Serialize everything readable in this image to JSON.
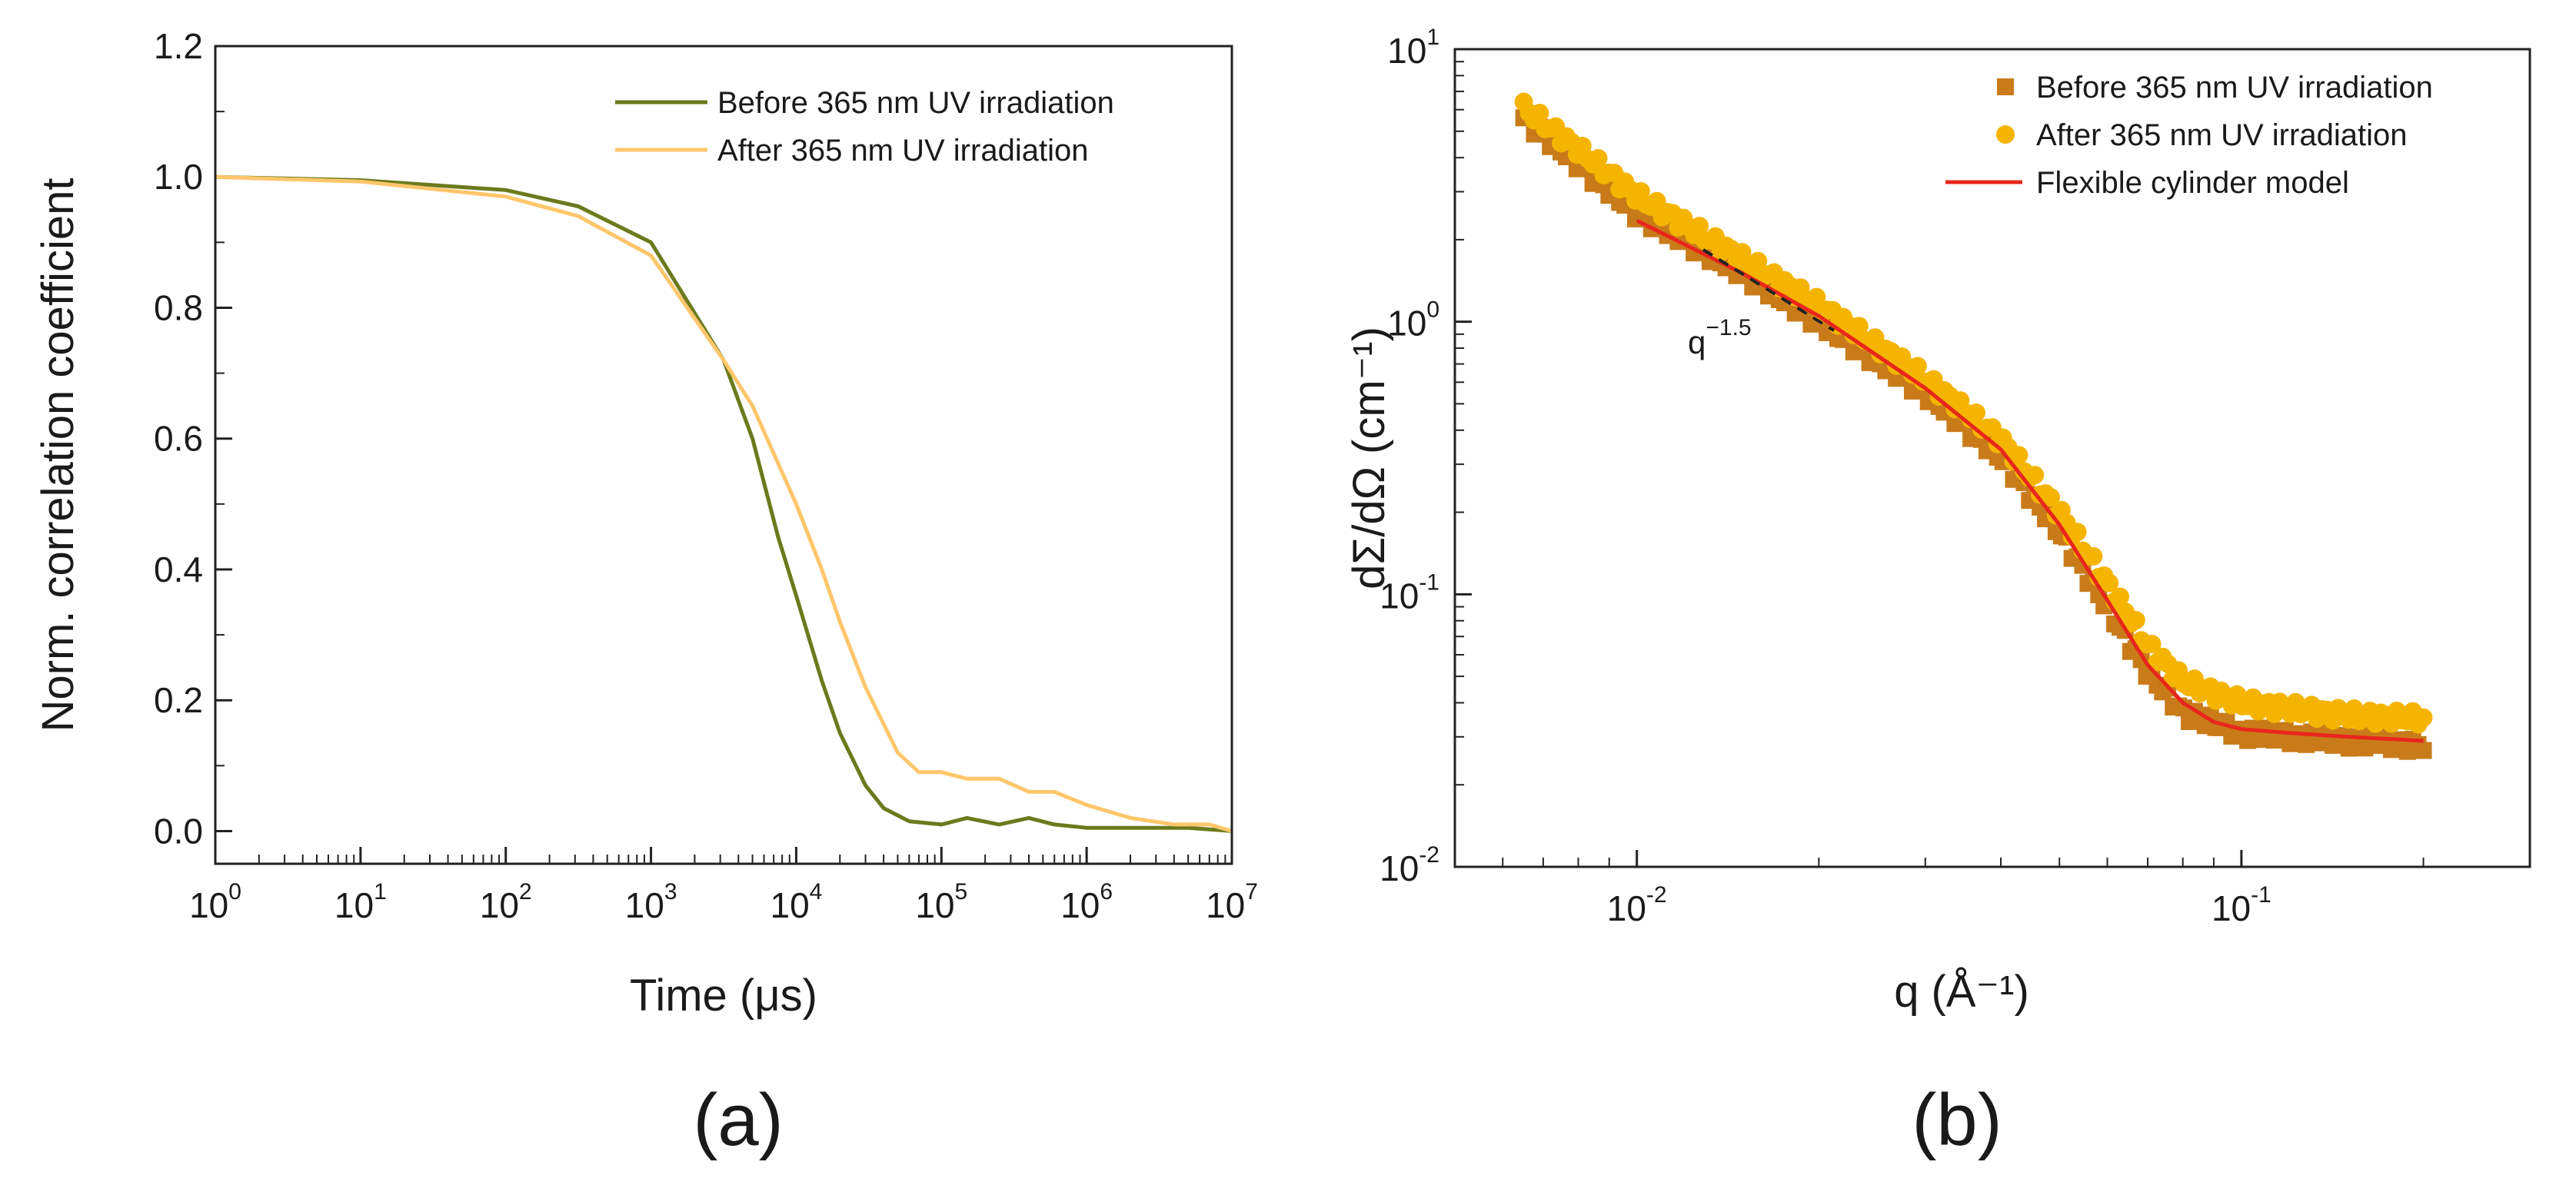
{
  "colors": {
    "before_a": "#6b7a1c",
    "after_a": "#ffc66b",
    "before_b": "#c97b1a",
    "after_b": "#f5b400",
    "model": "#e8261c",
    "axis": "#222222"
  },
  "chart_data": [
    {
      "type": "line",
      "panel_label": "(a)",
      "xlabel": "Time (μs)",
      "ylabel": "Norm. correlation coefficient",
      "xscale": "log",
      "xlim": [
        1,
        10000000
      ],
      "ylim": [
        -0.05,
        1.2
      ],
      "x_tick_labels": [
        {
          "base": "10",
          "exp": "0"
        },
        {
          "base": "10",
          "exp": "1"
        },
        {
          "base": "10",
          "exp": "2"
        },
        {
          "base": "10",
          "exp": "3"
        },
        {
          "base": "10",
          "exp": "4"
        },
        {
          "base": "10",
          "exp": "5"
        },
        {
          "base": "10",
          "exp": "6"
        },
        {
          "base": "10",
          "exp": "7"
        }
      ],
      "y_tick_labels": [
        "0.0",
        "0.2",
        "0.4",
        "0.6",
        "0.8",
        "1.0",
        "1.2"
      ],
      "legend_position": "top-right",
      "series": [
        {
          "name": "Before 365 nm UV irradiation",
          "color": "#6b7a1c",
          "x": [
            1,
            10,
            100,
            316,
            1000,
            3162,
            5000,
            7500,
            10000,
            15000,
            20000,
            30000,
            40000,
            60000,
            100000,
            150000,
            250000,
            400000,
            600000,
            1000000,
            2000000,
            5000000,
            10000000
          ],
          "y": [
            1.0,
            0.995,
            0.98,
            0.955,
            0.9,
            0.72,
            0.6,
            0.45,
            0.36,
            0.23,
            0.15,
            0.07,
            0.035,
            0.015,
            0.01,
            0.02,
            0.01,
            0.02,
            0.01,
            0.005,
            0.005,
            0.005,
            0.0
          ]
        },
        {
          "name": "After 365 nm UV irradiation",
          "color": "#ffc66b",
          "x": [
            1,
            10,
            100,
            316,
            1000,
            3162,
            5000,
            10000,
            15000,
            20000,
            30000,
            50000,
            70000,
            100000,
            150000,
            250000,
            400000,
            600000,
            1000000,
            2000000,
            4000000,
            7000000,
            10000000
          ],
          "y": [
            1.0,
            0.993,
            0.97,
            0.94,
            0.88,
            0.72,
            0.65,
            0.5,
            0.4,
            0.32,
            0.22,
            0.12,
            0.09,
            0.09,
            0.08,
            0.08,
            0.06,
            0.06,
            0.04,
            0.02,
            0.01,
            0.01,
            0.0
          ]
        }
      ]
    },
    {
      "type": "scatter",
      "panel_label": "(b)",
      "xlabel": "q (Å⁻¹)",
      "ylabel": "dΣ/dΩ (cm⁻¹)",
      "xscale": "log",
      "yscale": "log",
      "xlim": [
        0.005,
        0.3
      ],
      "ylim": [
        0.01,
        10
      ],
      "x_tick_labels": [
        {
          "base": "10",
          "exp": "-2",
          "value": 0.01
        },
        {
          "base": "10",
          "exp": "-1",
          "value": 0.1
        }
      ],
      "y_tick_labels": [
        {
          "base": "10",
          "exp": "-2",
          "value": 0.01
        },
        {
          "base": "10",
          "exp": "-1",
          "value": 0.1
        },
        {
          "base": "10",
          "exp": "0",
          "value": 1
        },
        {
          "base": "10",
          "exp": "1",
          "value": 10
        }
      ],
      "legend_position": "top-right",
      "annotation": {
        "base": "q",
        "exp": "−1.5"
      },
      "series": [
        {
          "name": "Before 365 nm UV irradiation",
          "marker": "square",
          "color": "#c97b1a",
          "x": [
            0.0065,
            0.008,
            0.01,
            0.015,
            0.02,
            0.03,
            0.04,
            0.05,
            0.06,
            0.07,
            0.08,
            0.1,
            0.15,
            0.2
          ],
          "y": [
            5.6,
            3.8,
            2.5,
            1.5,
            1.0,
            0.55,
            0.32,
            0.17,
            0.09,
            0.052,
            0.037,
            0.031,
            0.029,
            0.028
          ]
        },
        {
          "name": "After 365 nm UV irradiation",
          "marker": "circle",
          "color": "#f5b400",
          "x": [
            0.0065,
            0.008,
            0.01,
            0.015,
            0.02,
            0.03,
            0.04,
            0.05,
            0.06,
            0.07,
            0.08,
            0.1,
            0.15,
            0.2
          ],
          "y": [
            6.1,
            4.3,
            2.9,
            1.7,
            1.15,
            0.62,
            0.37,
            0.2,
            0.11,
            0.065,
            0.048,
            0.04,
            0.036,
            0.035
          ]
        },
        {
          "name": "Flexible cylinder model",
          "marker": "line",
          "color": "#e8261c",
          "x": [
            0.01,
            0.015,
            0.02,
            0.03,
            0.04,
            0.05,
            0.06,
            0.07,
            0.08,
            0.09,
            0.1,
            0.12,
            0.15,
            0.2
          ],
          "y": [
            2.35,
            1.5,
            1.05,
            0.57,
            0.34,
            0.18,
            0.095,
            0.055,
            0.04,
            0.034,
            0.032,
            0.031,
            0.03,
            0.029
          ]
        }
      ]
    }
  ]
}
